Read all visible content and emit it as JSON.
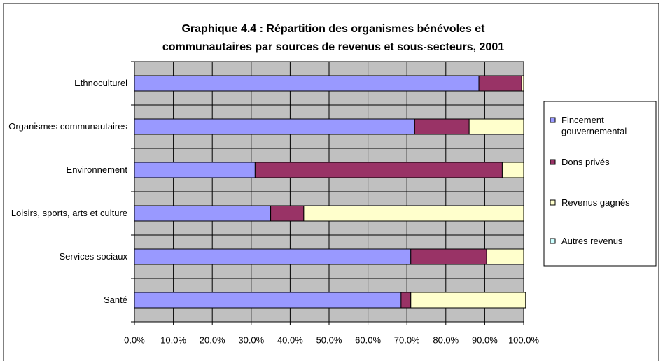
{
  "chart_data": {
    "type": "stacked-bar-horizontal",
    "title": "Graphique 4.4 : Répartition des organismes bénévoles et",
    "subtitle": "communautaires par sources de revenus et sous-secteurs, 2001",
    "categories": [
      "Ethnoculturel",
      "Organismes communautaires",
      "Environnement",
      "Loisirs, sports, arts et culture",
      "Services sociaux",
      "Santé"
    ],
    "series": [
      {
        "name": "Fincement gouvernemental",
        "color": "#9999ff",
        "values": [
          88.5,
          72,
          31,
          35,
          71,
          68.5
        ]
      },
      {
        "name": "Dons privés",
        "color": "#993366",
        "values": [
          11,
          14,
          63.5,
          8.5,
          19.5,
          2.5
        ]
      },
      {
        "name": "Revenus gagnés",
        "color": "#ffffcc",
        "values": [
          0.5,
          14,
          5.5,
          56.5,
          9.5,
          29.5
        ]
      },
      {
        "name": "Autres revenus",
        "color": "#ccffff",
        "values": [
          0,
          0,
          0,
          0,
          0,
          0
        ]
      }
    ],
    "xlim": [
      0,
      100
    ],
    "xticks": [
      {
        "value": 0,
        "label": "0.0%"
      },
      {
        "value": 10,
        "label": "10.0%"
      },
      {
        "value": 20,
        "label": "20.0%"
      },
      {
        "value": 30,
        "label": "30.0%"
      },
      {
        "value": 40,
        "label": "40.0%"
      },
      {
        "value": 50,
        "label": "50.0%"
      },
      {
        "value": 60,
        "label": "60.0%"
      },
      {
        "value": 70,
        "label": "70.0%"
      },
      {
        "value": 80,
        "label": "80.0%"
      },
      {
        "value": 90,
        "label": "90.0%"
      },
      {
        "value": 100,
        "label": "100.0%"
      }
    ],
    "grid": true,
    "legend": "right"
  }
}
